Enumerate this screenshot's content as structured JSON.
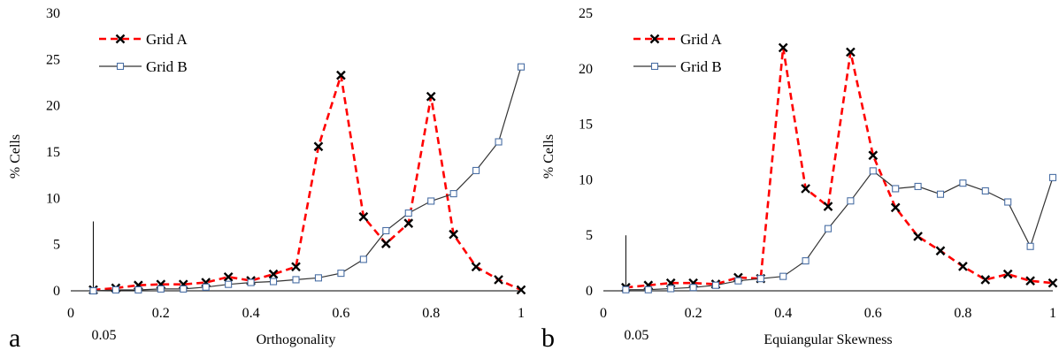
{
  "chart_data": [
    {
      "type": "line",
      "panel_label": "a",
      "xlabel": "Orthogonality",
      "ylabel": "% Cells",
      "xlim": [
        0,
        1
      ],
      "ylim": [
        0,
        30
      ],
      "x_ticks": [
        "0",
        "0.2",
        "0.4",
        "0.6",
        "0.8",
        "1"
      ],
      "y_ticks": [
        "0",
        "5",
        "10",
        "15",
        "20",
        "25",
        "30"
      ],
      "extra_tick": {
        "value": 0.05,
        "label": "0.05",
        "line_top": 7.5
      },
      "legend_position": "top-left",
      "series": [
        {
          "name": "Grid A",
          "color": "#ff0000",
          "marker": "x",
          "line": "dashed",
          "x": [
            0.05,
            0.1,
            0.15,
            0.2,
            0.25,
            0.3,
            0.35,
            0.4,
            0.45,
            0.5,
            0.55,
            0.6,
            0.65,
            0.7,
            0.75,
            0.8,
            0.85,
            0.9,
            0.95,
            1.0
          ],
          "y": [
            0.1,
            0.3,
            0.6,
            0.7,
            0.7,
            0.9,
            1.5,
            1.1,
            1.8,
            2.6,
            15.6,
            23.3,
            8.0,
            5.1,
            7.3,
            21.0,
            6.1,
            2.6,
            1.2,
            0.1
          ]
        },
        {
          "name": "Grid B",
          "color": "#4a6fa5",
          "line_color": "#333333",
          "marker": "square",
          "line": "solid",
          "x": [
            0.05,
            0.1,
            0.15,
            0.2,
            0.25,
            0.3,
            0.35,
            0.4,
            0.45,
            0.5,
            0.55,
            0.6,
            0.65,
            0.7,
            0.75,
            0.8,
            0.85,
            0.9,
            0.95,
            1.0
          ],
          "y": [
            0.0,
            0.1,
            0.1,
            0.2,
            0.2,
            0.4,
            0.7,
            0.9,
            1.0,
            1.2,
            1.4,
            1.9,
            3.4,
            6.5,
            8.4,
            9.7,
            10.5,
            13.0,
            16.1,
            24.2
          ]
        }
      ]
    },
    {
      "type": "line",
      "panel_label": "b",
      "xlabel": "Equiangular  Skewness",
      "ylabel": "% Cells",
      "xlim": [
        0,
        1
      ],
      "ylim": [
        0,
        25
      ],
      "x_ticks": [
        "0",
        "0.2",
        "0.4",
        "0.6",
        "0.8",
        "1"
      ],
      "y_ticks": [
        "0",
        "5",
        "10",
        "15",
        "20",
        "25"
      ],
      "extra_tick": {
        "value": 0.05,
        "label": "0.05",
        "line_top": 5
      },
      "legend_position": "top-left",
      "series": [
        {
          "name": "Grid A",
          "color": "#ff0000",
          "marker": "x",
          "line": "dashed",
          "x": [
            0.05,
            0.1,
            0.15,
            0.2,
            0.25,
            0.3,
            0.35,
            0.4,
            0.45,
            0.5,
            0.55,
            0.6,
            0.65,
            0.7,
            0.75,
            0.8,
            0.85,
            0.9,
            0.95,
            1.0
          ],
          "y": [
            0.3,
            0.5,
            0.7,
            0.7,
            0.6,
            1.2,
            1.1,
            21.9,
            9.2,
            7.6,
            21.5,
            12.2,
            7.5,
            4.9,
            3.6,
            2.2,
            1.0,
            1.5,
            0.9,
            0.7
          ]
        },
        {
          "name": "Grid B",
          "color": "#4a6fa5",
          "line_color": "#333333",
          "marker": "square",
          "line": "solid",
          "x": [
            0.05,
            0.1,
            0.15,
            0.2,
            0.25,
            0.3,
            0.35,
            0.4,
            0.45,
            0.5,
            0.55,
            0.6,
            0.65,
            0.7,
            0.75,
            0.8,
            0.85,
            0.9,
            0.95,
            1.0
          ],
          "y": [
            0.1,
            0.1,
            0.2,
            0.3,
            0.5,
            0.9,
            1.1,
            1.3,
            2.7,
            5.6,
            8.1,
            10.8,
            9.2,
            9.4,
            8.7,
            9.7,
            9.0,
            8.0,
            4.0,
            10.2
          ]
        }
      ]
    }
  ]
}
